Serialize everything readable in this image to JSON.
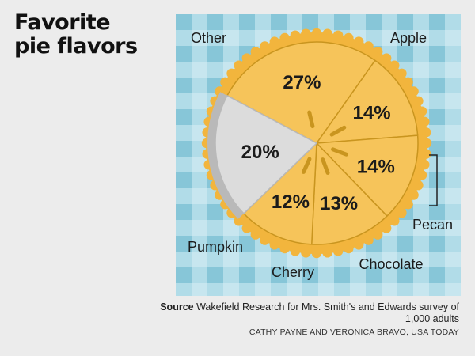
{
  "title_lines": [
    "Favorite",
    "pie flavors"
  ],
  "chart_data": {
    "type": "pie",
    "title": "Favorite pie flavors",
    "slices": [
      {
        "label": "Apple",
        "value": 27,
        "value_label": "27%"
      },
      {
        "label": "Pecan",
        "value": 14,
        "value_label": "14%"
      },
      {
        "label": "Chocolate",
        "value": 14,
        "value_label": "14%"
      },
      {
        "label": "Cherry",
        "value": 13,
        "value_label": "13%"
      },
      {
        "label": "Pumpkin",
        "value": 12,
        "value_label": "12%"
      },
      {
        "label": "Other",
        "value": 20,
        "value_label": "20%"
      }
    ],
    "colors": {
      "filling": "#f6c45a",
      "crust": "#f2b53d",
      "slice_lines": "#c9951f",
      "other_fill": "#dcdcdc",
      "other_rim": "#b9b9b9",
      "tablecloth_light": "#c7e6ef",
      "tablecloth_mid": "#9fd2e1",
      "tablecloth_dark": "#7cc0d4"
    },
    "legend": "direct labels"
  },
  "source": {
    "label": "Source",
    "text": "Wakefield Research for Mrs. Smith's and Edwards survey of 1,000 adults"
  },
  "credit": "CATHY PAYNE AND VERONICA BRAVO, USA TODAY"
}
